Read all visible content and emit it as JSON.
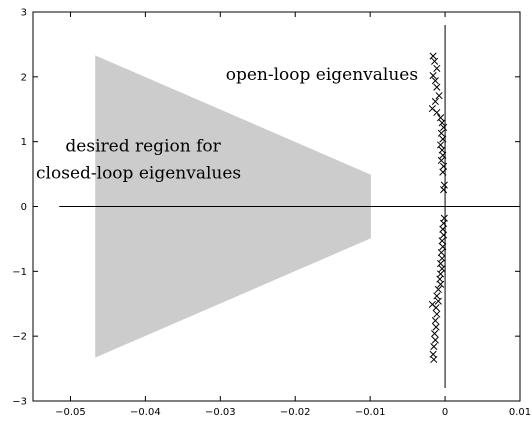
{
  "chart_data": {
    "type": "scatter",
    "title": "",
    "xlabel": "",
    "ylabel": "",
    "xlim": [
      -0.055,
      0.01
    ],
    "ylim": [
      -3,
      3
    ],
    "xticks": [
      -0.05,
      -0.04,
      -0.03,
      -0.02,
      -0.01,
      0,
      0.01
    ],
    "xtick_labels": [
      "−0.05",
      "−0.04",
      "−0.03",
      "−0.02",
      "−0.01",
      "0",
      "0.01"
    ],
    "yticks": [
      -3,
      -2,
      -1,
      0,
      1,
      2,
      3
    ],
    "ytick_labels": [
      "−3",
      "−2",
      "−1",
      "0",
      "1",
      "2",
      "3"
    ],
    "grid": false,
    "reference_lines": {
      "horizontal_y": 0,
      "horizontal_x_range": [
        -0.0515,
        0.01
      ],
      "vertical_x": 0,
      "vertical_y_range": [
        -2.8,
        2.8
      ]
    },
    "region": {
      "label_lines": [
        "desired region for",
        "closed-loop eigenvalues"
      ],
      "fill": "#cccccc",
      "polygon": [
        [
          -0.0467,
          2.33
        ],
        [
          -0.0099,
          0.49
        ],
        [
          -0.0099,
          -0.49
        ],
        [
          -0.0467,
          -2.33
        ]
      ]
    },
    "series": [
      {
        "marker": "x",
        "color": "#000000",
        "points": [
          [
            -0.0016,
            2.32
          ],
          [
            -0.0014,
            2.24
          ],
          [
            -0.0011,
            2.13
          ],
          [
            -0.0016,
            2.02
          ],
          [
            -0.0013,
            1.94
          ],
          [
            -0.0011,
            1.84
          ],
          [
            -0.0008,
            1.71
          ],
          [
            -0.0013,
            1.62
          ],
          [
            -0.0017,
            1.51
          ],
          [
            -0.0011,
            1.45
          ],
          [
            -0.0006,
            1.37
          ],
          [
            -0.0004,
            1.29
          ],
          [
            -0.0002,
            1.22
          ],
          [
            -0.0005,
            1.13
          ],
          [
            -0.0003,
            1.04
          ],
          [
            -0.0006,
            0.95
          ],
          [
            -0.0004,
            0.87
          ],
          [
            -0.0003,
            0.79
          ],
          [
            -0.0005,
            0.71
          ],
          [
            -0.0002,
            0.62
          ],
          [
            -0.0003,
            0.53
          ],
          [
            -0.0001,
            0.33
          ],
          [
            -0.0002,
            0.26
          ],
          [
            -0.0001,
            -0.18
          ],
          [
            -0.0002,
            -0.26
          ],
          [
            -0.0003,
            -0.35
          ],
          [
            -0.0002,
            -0.44
          ],
          [
            -0.0004,
            -0.53
          ],
          [
            -0.0003,
            -0.62
          ],
          [
            -0.0005,
            -0.71
          ],
          [
            -0.0004,
            -0.8
          ],
          [
            -0.0006,
            -0.88
          ],
          [
            -0.0004,
            -0.96
          ],
          [
            -0.0006,
            -1.04
          ],
          [
            -0.0007,
            -1.12
          ],
          [
            -0.0006,
            -1.2
          ],
          [
            -0.0009,
            -1.28
          ],
          [
            -0.0011,
            -1.38
          ],
          [
            -0.0009,
            -1.46
          ],
          [
            -0.0017,
            -1.51
          ],
          [
            -0.0012,
            -1.56
          ],
          [
            -0.0011,
            -1.66
          ],
          [
            -0.0013,
            -1.76
          ],
          [
            -0.0012,
            -1.86
          ],
          [
            -0.0014,
            -1.96
          ],
          [
            -0.0013,
            -2.06
          ],
          [
            -0.0015,
            -2.16
          ],
          [
            -0.0016,
            -2.28
          ],
          [
            -0.0015,
            -2.36
          ]
        ]
      }
    ],
    "annotations": [
      {
        "text": "open-loop eigenvalues",
        "x": -0.0036,
        "y": 1.95,
        "anchor": "end"
      }
    ]
  }
}
